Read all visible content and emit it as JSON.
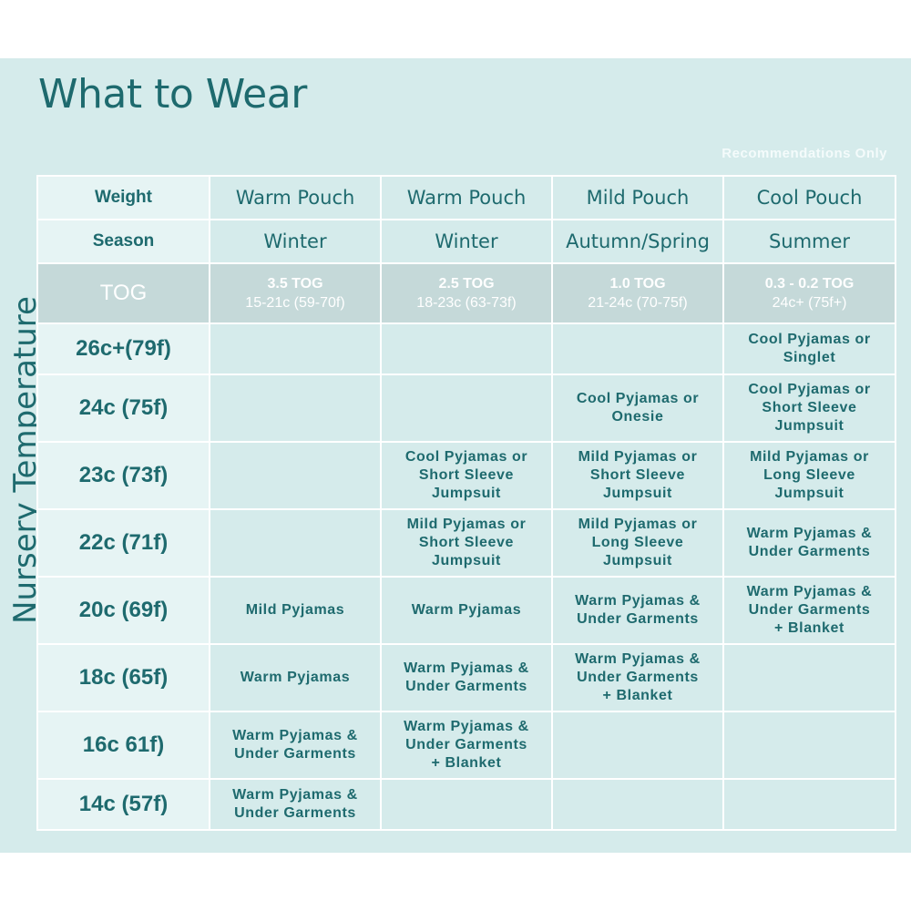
{
  "title": "What to Wear",
  "note": "Recommendations Only",
  "side_label": "Nursery Temperature",
  "header": {
    "weight_label": "Weight",
    "season_label": "Season",
    "tog_label": "TOG",
    "columns": [
      {
        "weight": "Warm Pouch",
        "season": "Winter",
        "tog": "3.5 TOG",
        "range": "15-21c (59-70f)"
      },
      {
        "weight": "Warm Pouch",
        "season": "Winter",
        "tog": "2.5 TOG",
        "range": "18-23c (63-73f)"
      },
      {
        "weight": "Mild Pouch",
        "season": "Autumn/Spring",
        "tog": "1.0 TOG",
        "range": "21-24c (70-75f)"
      },
      {
        "weight": "Cool Pouch",
        "season": "Summer",
        "tog": "0.3 - 0.2 TOG",
        "range": "24c+ (75f+)"
      }
    ]
  },
  "rows": [
    {
      "temp": "26c+(79f)",
      "cells": [
        "",
        "",
        "",
        "Cool Pyjamas or\nSinglet"
      ]
    },
    {
      "temp": "24c (75f)",
      "cells": [
        "",
        "",
        "Cool Pyjamas or\nOnesie",
        "Cool Pyjamas or\nShort Sleeve\nJumpsuit"
      ]
    },
    {
      "temp": "23c (73f)",
      "cells": [
        "",
        "Cool Pyjamas or\nShort Sleeve\nJumpsuit",
        "Mild Pyjamas or\nShort Sleeve\nJumpsuit",
        "Mild Pyjamas or\nLong Sleeve\nJumpsuit"
      ]
    },
    {
      "temp": "22c (71f)",
      "cells": [
        "",
        "Mild Pyjamas or\nShort Sleeve\nJumpsuit",
        "Mild Pyjamas or\nLong Sleeve\nJumpsuit",
        "Warm Pyjamas &\nUnder Garments"
      ]
    },
    {
      "temp": "20c (69f)",
      "cells": [
        "Mild Pyjamas",
        "Warm Pyjamas",
        "Warm Pyjamas &\nUnder Garments",
        "Warm Pyjamas &\nUnder Garments\n+ Blanket"
      ]
    },
    {
      "temp": "18c (65f)",
      "cells": [
        "Warm Pyjamas",
        "Warm Pyjamas &\nUnder Garments",
        "Warm Pyjamas &\nUnder Garments\n+ Blanket",
        ""
      ]
    },
    {
      "temp": "16c 61f)",
      "cells": [
        "Warm Pyjamas &\nUnder Garments",
        "Warm Pyjamas &\nUnder Garments\n+ Blanket",
        "",
        ""
      ]
    },
    {
      "temp": "14c (57f)",
      "cells": [
        "Warm Pyjamas &\nUnder Garments",
        "",
        "",
        ""
      ]
    }
  ]
}
